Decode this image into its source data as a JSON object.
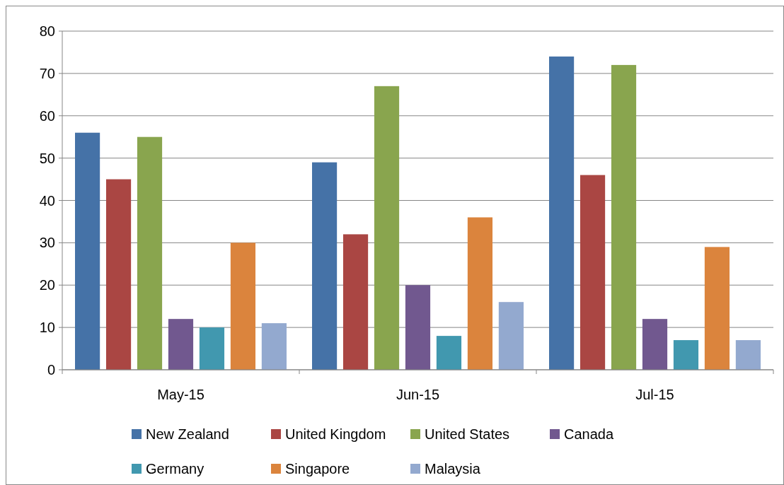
{
  "chart_data": {
    "type": "bar",
    "categories": [
      "May-15",
      "Jun-15",
      "Jul-15"
    ],
    "series": [
      {
        "name": "New Zealand",
        "color": "#4572a7",
        "values": [
          56,
          49,
          74
        ]
      },
      {
        "name": "United Kingdom",
        "color": "#aa4643",
        "values": [
          45,
          32,
          46
        ]
      },
      {
        "name": "United States",
        "color": "#89a54e",
        "values": [
          55,
          67,
          72
        ]
      },
      {
        "name": "Canada",
        "color": "#71588f",
        "values": [
          12,
          20,
          12
        ]
      },
      {
        "name": "Germany",
        "color": "#4198af",
        "values": [
          10,
          8,
          7
        ]
      },
      {
        "name": "Singapore",
        "color": "#db843d",
        "values": [
          30,
          36,
          29
        ]
      },
      {
        "name": "Malaysia",
        "color": "#93a9cf",
        "values": [
          11,
          16,
          7
        ]
      }
    ],
    "ylim": [
      0,
      80
    ],
    "yticks": [
      0,
      10,
      20,
      30,
      40,
      50,
      60,
      70,
      80
    ],
    "grid": "y",
    "legend": "bottom"
  }
}
